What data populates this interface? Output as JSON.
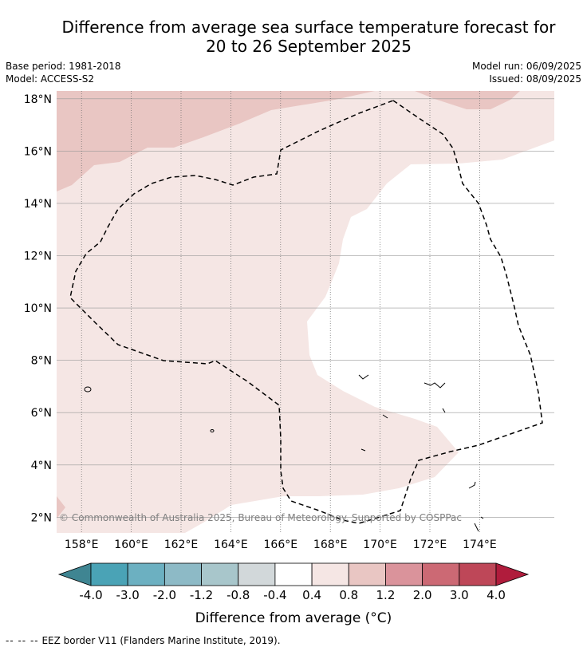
{
  "header": {
    "title_line1": "Difference from average sea surface temperature forecast for",
    "title_line2": "20 to 26 September 2025",
    "base_period": "Base period: 1981-2018",
    "model": "Model: ACCESS-S2",
    "model_run": "Model run: 06/09/2025",
    "issued": "Issued: 08/09/2025"
  },
  "map": {
    "lat_labels": [
      "18°N",
      "16°N",
      "14°N",
      "12°N",
      "10°N",
      "8°N",
      "6°N",
      "4°N",
      "2°N"
    ],
    "lon_labels": [
      "158°E",
      "160°E",
      "162°E",
      "164°E",
      "166°E",
      "168°E",
      "170°E",
      "172°E",
      "174°E"
    ],
    "lat_range": [
      1.4,
      18.3
    ],
    "lon_range": [
      157.0,
      177.0
    ],
    "gridlines": true,
    "copyright": "© Commonwealth of Australia 2025, Bureau of Meteorology. Supported by COSPPac",
    "colors": {
      "light_warm": "#f5e6e4",
      "warm": "#e9c6c3",
      "neutral": "#ffffff",
      "eez_line": "#000000"
    }
  },
  "colorbar": {
    "label": "Difference from average (°C)",
    "ticks": [
      "-4.0",
      "-3.0",
      "-2.0",
      "-1.2",
      "-0.8",
      "-0.4",
      "0.4",
      "0.8",
      "1.2",
      "2.0",
      "3.0",
      "4.0"
    ],
    "low_extend_color": "#3f8592",
    "high_extend_color": "#b01c3c",
    "colors": [
      "#4aa3b6",
      "#6cb0c1",
      "#8dbac6",
      "#a8c6cb",
      "#d2d8da",
      "#ffffff",
      "#f5e6e4",
      "#e9c6c3",
      "#da939b",
      "#cc6974",
      "#be4758"
    ]
  },
  "footnote": {
    "dash": "--  --  --",
    "text": "EEZ border V11 (Flanders Marine Institute, 2019)."
  }
}
